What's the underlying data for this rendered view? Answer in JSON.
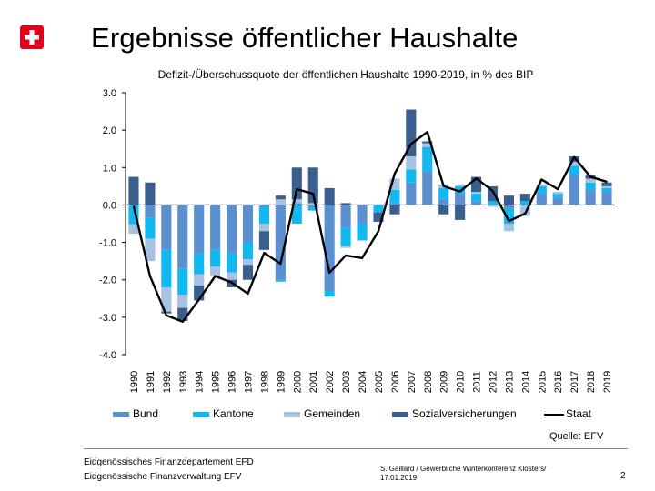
{
  "header": {
    "title": "Ergebnisse öffentlicher Haushalte"
  },
  "chart_data": {
    "type": "bar",
    "stacked": true,
    "title": "Defizit-/Überschussquote der öffentlichen Haushalte 1990-2019, in % des BIP",
    "xlabel": "",
    "ylabel": "",
    "ylim": [
      -4.0,
      3.0
    ],
    "yticks": [
      "3.0",
      "2.0",
      "1.0",
      "0.0",
      "-1.0",
      "-2.0",
      "-3.0",
      "-4.0"
    ],
    "ytick_values": [
      3,
      2,
      1,
      0,
      -1,
      -2,
      -3,
      -4
    ],
    "categories": [
      "1990",
      "1991",
      "1992",
      "1993",
      "1994",
      "1995",
      "1996",
      "1997",
      "1998",
      "1999",
      "2000",
      "2001",
      "2002",
      "2003",
      "2004",
      "2005",
      "2006",
      "2007",
      "2008",
      "2009",
      "2010",
      "2011",
      "2012",
      "2013",
      "2014",
      "2015",
      "2016",
      "2017",
      "2018",
      "2019"
    ],
    "series": [
      {
        "name": "Bund",
        "color": "#5b8fd0",
        "values": [
          -0.02,
          -0.35,
          -1.2,
          -1.7,
          -1.3,
          -1.2,
          -1.3,
          -1.0,
          -0.05,
          -2.0,
          0.05,
          -0.05,
          -2.3,
          -0.6,
          -0.5,
          0.0,
          0.05,
          0.6,
          0.9,
          0.15,
          0.3,
          0.1,
          0.0,
          -0.1,
          0.0,
          0.3,
          0.2,
          0.8,
          0.4,
          0.35
        ]
      },
      {
        "name": "Kantone",
        "color": "#12b8f0",
        "values": [
          -0.5,
          -0.55,
          -1.0,
          -0.7,
          -0.55,
          -0.45,
          -0.5,
          -0.45,
          -0.45,
          -0.05,
          -0.5,
          -0.1,
          -0.15,
          -0.5,
          -0.45,
          -0.2,
          0.35,
          0.35,
          0.65,
          0.3,
          0.2,
          0.2,
          0.1,
          -0.4,
          0.1,
          0.2,
          0.1,
          0.25,
          0.2,
          0.1
        ]
      },
      {
        "name": "Gemeinden",
        "color": "#a6c1e1",
        "values": [
          -0.25,
          -0.6,
          -0.65,
          -0.35,
          -0.3,
          -0.25,
          -0.2,
          -0.15,
          -0.2,
          0.15,
          0.1,
          0.05,
          0.0,
          -0.05,
          0.0,
          0.0,
          0.3,
          0.35,
          0.1,
          0.1,
          0.05,
          0.05,
          -0.05,
          -0.2,
          -0.3,
          0.05,
          0.05,
          0.1,
          0.1,
          0.05
        ]
      },
      {
        "name": "Sozialversicherungen",
        "color": "#3a5f8f",
        "values": [
          0.75,
          0.6,
          -0.05,
          -0.35,
          -0.4,
          0.0,
          -0.2,
          -0.4,
          -0.5,
          0.1,
          0.85,
          0.95,
          0.45,
          0.05,
          0.0,
          -0.25,
          -0.25,
          1.25,
          0.05,
          -0.25,
          -0.4,
          0.4,
          0.4,
          0.25,
          0.2,
          0.0,
          0.0,
          0.15,
          0.1,
          0.1
        ]
      }
    ],
    "line": {
      "name": "Staat",
      "color": "#000000",
      "values": [
        -0.03,
        -1.9,
        -2.95,
        -3.12,
        -2.53,
        -1.9,
        -2.07,
        -2.37,
        -1.28,
        -1.57,
        0.42,
        0.3,
        -1.81,
        -1.35,
        -1.42,
        -0.7,
        0.84,
        1.63,
        1.95,
        0.5,
        0.36,
        0.71,
        0.38,
        -0.43,
        -0.23,
        0.68,
        0.42,
        1.28,
        0.75,
        0.62
      ]
    },
    "legend": [
      "Bund",
      "Kantone",
      "Gemeinden",
      "Sozialversicherungen",
      "Staat"
    ],
    "legend_position": "bottom",
    "grid": false,
    "source": "Quelle: EFV"
  },
  "footer": {
    "dept": "Eidgenössisches Finanzdepartement EFD",
    "admin": "Eidgenössische Finanzverwaltung EFV",
    "event_line1": "S. Gaillard / Gewerbliche Winterkonferenz Klosters/",
    "event_line2": "17.01.2019",
    "page": "2"
  }
}
